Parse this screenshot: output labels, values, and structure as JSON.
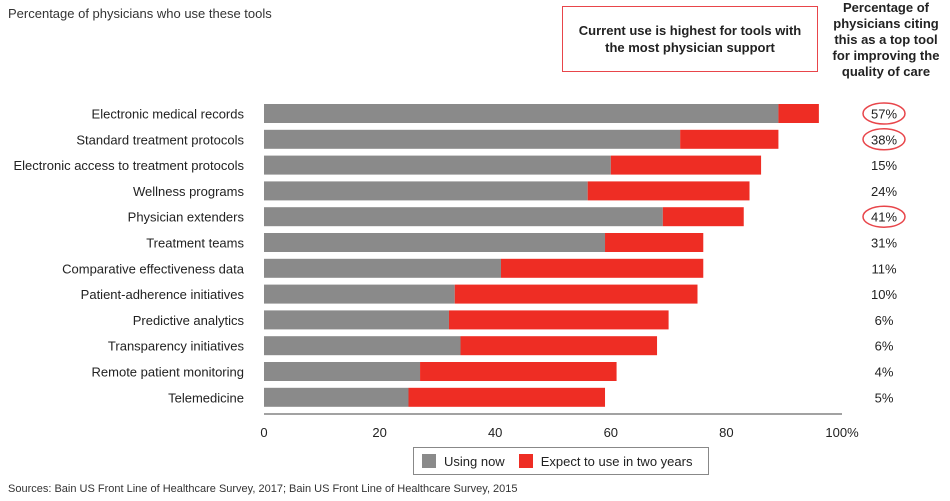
{
  "subtitle": "Percentage of physicians who use these tools",
  "callout": "Current use is highest for tools with the most physician support",
  "side_header": "Percentage of physicians citing this as a top tool for improving the quality of care",
  "source": "Sources: Bain US Front Line of Healthcare Survey, 2017; Bain US Front Line of Healthcare Survey, 2015",
  "colors": {
    "using_now": "#8a8a8a",
    "expect": "#ee2d24",
    "circle": "#e8454a"
  },
  "chart_data": {
    "type": "bar",
    "orientation": "horizontal",
    "stacked": true,
    "categories": [
      "Electronic medical records",
      "Standard treatment protocols",
      "Electronic access to treatment protocols",
      "Wellness programs",
      "Physician extenders",
      "Treatment teams",
      "Comparative effectiveness data",
      "Patient-adherence initiatives",
      "Predictive analytics",
      "Transparency initiatives",
      "Remote patient monitoring",
      "Telemedicine"
    ],
    "series": [
      {
        "name": "Using now",
        "values": [
          89,
          72,
          60,
          56,
          69,
          59,
          41,
          33,
          32,
          34,
          27,
          25
        ]
      },
      {
        "name": "Expect to use in two years",
        "values": [
          7,
          17,
          26,
          28,
          14,
          17,
          35,
          42,
          38,
          34,
          34,
          34
        ]
      }
    ],
    "side_values": [
      "57%",
      "38%",
      "15%",
      "24%",
      "41%",
      "31%",
      "11%",
      "10%",
      "6%",
      "6%",
      "4%",
      "5%"
    ],
    "circled": [
      true,
      true,
      false,
      false,
      true,
      false,
      false,
      false,
      false,
      false,
      false,
      false
    ],
    "x_ticks": [
      "0",
      "20",
      "40",
      "60",
      "80",
      "100%"
    ],
    "xlim": [
      0,
      100
    ],
    "legend_position": "bottom"
  }
}
